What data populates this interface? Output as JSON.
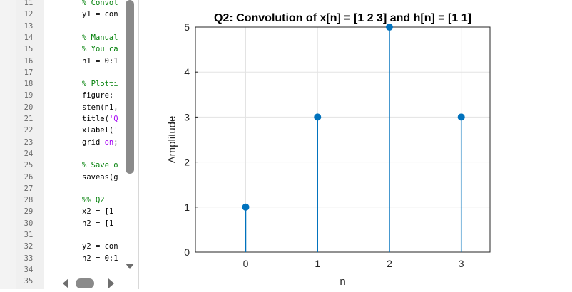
{
  "editor": {
    "overflow_label": "···",
    "line_numbers": [
      "11",
      "12",
      "13",
      "14",
      "15",
      "16",
      "17",
      "18",
      "19",
      "20",
      "21",
      "22",
      "23",
      "24",
      "25",
      "26",
      "27",
      "28",
      "29",
      "30",
      "31",
      "32",
      "33",
      "34",
      "35"
    ],
    "lines": [
      [
        {
          "t": "% Convol",
          "c": "cm"
        }
      ],
      [
        {
          "t": "y1 = con",
          "c": ""
        }
      ],
      [],
      [
        {
          "t": "% Manual",
          "c": "cm"
        }
      ],
      [
        {
          "t": "% You ca",
          "c": "cm"
        }
      ],
      [
        {
          "t": "n1 = 0:1",
          "c": ""
        }
      ],
      [],
      [
        {
          "t": "% Plotti",
          "c": "cm"
        }
      ],
      [
        {
          "t": "figure;",
          "c": ""
        }
      ],
      [
        {
          "t": "stem(n1,",
          "c": ""
        }
      ],
      [
        {
          "t": "title(",
          "c": ""
        },
        {
          "t": "'Q",
          "c": "str"
        }
      ],
      [
        {
          "t": "xlabel(",
          "c": ""
        },
        {
          "t": "'",
          "c": "str"
        }
      ],
      [
        {
          "t": "grid ",
          "c": ""
        },
        {
          "t": "on",
          "c": "kw"
        },
        {
          "t": ";",
          "c": ""
        }
      ],
      [],
      [
        {
          "t": "% Save o",
          "c": "cm"
        }
      ],
      [
        {
          "t": "saveas(g",
          "c": ""
        }
      ],
      [],
      [
        {
          "t": "%% Q2",
          "c": "cm"
        }
      ],
      [
        {
          "t": "x2 = [1",
          "c": ""
        }
      ],
      [
        {
          "t": "h2 = [1",
          "c": ""
        }
      ],
      [],
      [
        {
          "t": "y2 = con",
          "c": ""
        }
      ],
      [
        {
          "t": "n2 = 0:1",
          "c": ""
        }
      ],
      [],
      []
    ]
  },
  "chart_data": {
    "type": "stem",
    "title": "Q2: Convolution of x[n] = [1 2 3] and h[n] = [1 1]",
    "xlabel": "n",
    "ylabel": "Amplitude",
    "x": [
      0,
      1,
      2,
      3
    ],
    "y": [
      1,
      3,
      5,
      3
    ],
    "xlim": [
      -0.7,
      3.4
    ],
    "ylim": [
      0,
      5
    ],
    "xticks": [
      0,
      1,
      2,
      3
    ],
    "yticks": [
      0,
      1,
      2,
      3,
      4,
      5
    ],
    "grid": true,
    "color": "#0072bd"
  }
}
